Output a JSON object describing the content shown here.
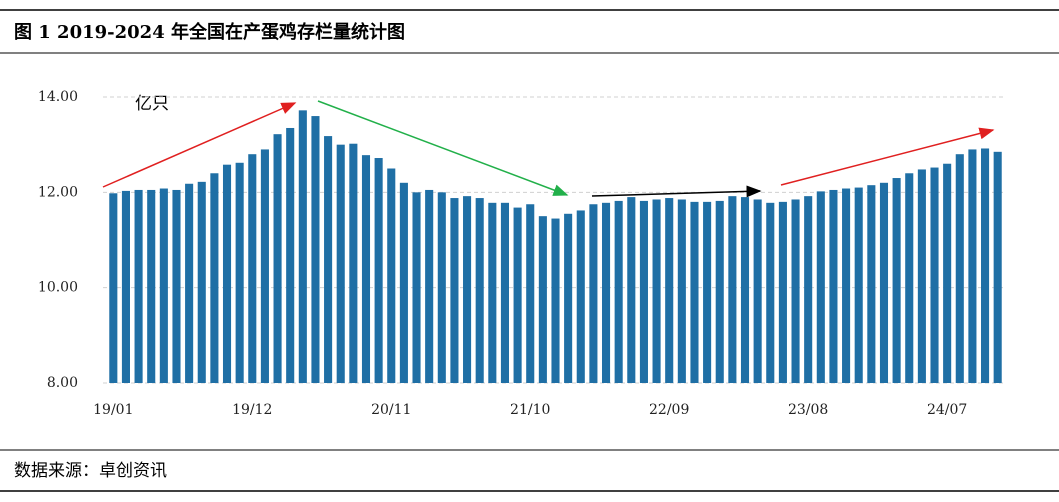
{
  "chart_data": {
    "type": "bar",
    "title": "图 1 2019-2024 年全国在产蛋鸡存栏量统计图",
    "unit_label": "亿只",
    "source": "数据来源：卓创资讯",
    "categories": [
      "19/01",
      null,
      null,
      null,
      null,
      null,
      null,
      null,
      null,
      null,
      null,
      "19/12",
      null,
      null,
      null,
      null,
      null,
      null,
      null,
      null,
      null,
      null,
      "20/11",
      null,
      null,
      null,
      null,
      null,
      null,
      null,
      null,
      null,
      null,
      "21/10",
      null,
      null,
      null,
      null,
      null,
      null,
      null,
      null,
      null,
      null,
      "22/09",
      null,
      null,
      null,
      null,
      null,
      null,
      null,
      null,
      null,
      null,
      "23/08",
      null,
      null,
      null,
      null,
      null,
      null,
      null,
      null,
      null,
      null,
      "24/07",
      null,
      null,
      null,
      null
    ],
    "values": [
      11.98,
      12.03,
      12.05,
      12.05,
      12.08,
      12.05,
      12.18,
      12.22,
      12.4,
      12.58,
      12.62,
      12.8,
      12.9,
      13.22,
      13.35,
      13.72,
      13.6,
      13.18,
      13.0,
      13.02,
      12.78,
      12.72,
      12.5,
      12.2,
      12.0,
      12.05,
      12.0,
      11.88,
      11.92,
      11.88,
      11.78,
      11.78,
      11.68,
      11.75,
      11.5,
      11.45,
      11.55,
      11.62,
      11.75,
      11.78,
      11.82,
      11.9,
      11.82,
      11.85,
      11.88,
      11.85,
      11.8,
      11.8,
      11.82,
      11.92,
      11.9,
      11.85,
      11.78,
      11.8,
      11.85,
      11.92,
      12.02,
      12.05,
      12.08,
      12.1,
      12.15,
      12.2,
      12.3,
      12.4,
      12.48,
      12.52,
      12.6,
      12.8,
      12.9,
      12.92,
      12.85
    ],
    "color": "#1f6fa5",
    "ylim": [
      8,
      14
    ],
    "yticks": [
      {
        "value": 8,
        "label": "8.00"
      },
      {
        "value": 10,
        "label": "10.00"
      },
      {
        "value": 12,
        "label": "12.00"
      },
      {
        "value": 14,
        "label": "14.00"
      }
    ],
    "grid": true
  }
}
